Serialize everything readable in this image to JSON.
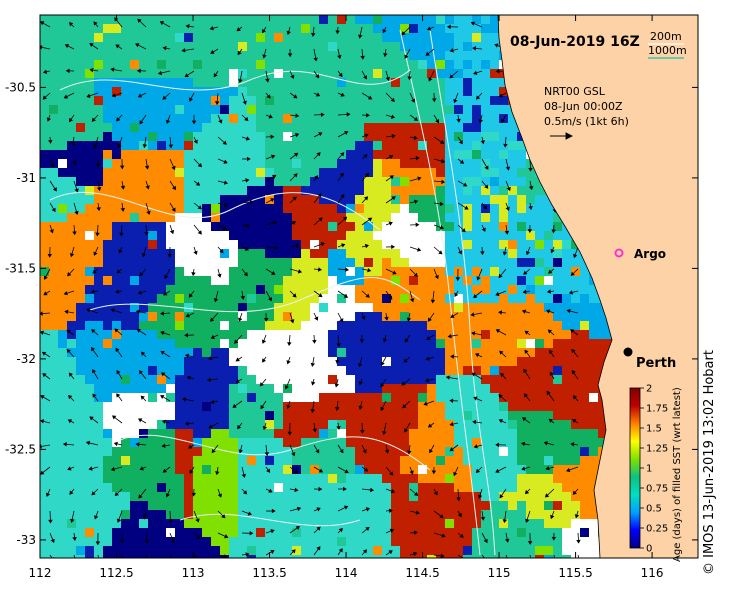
{
  "map": {
    "title": "08-Jun-2019 16Z",
    "depth_contours": {
      "shallow": "200m",
      "deep": "1000m",
      "deep_color": "#3fc3a8"
    },
    "current_source": {
      "product": "NRT00 GSL",
      "time": "08-Jun 00:00Z",
      "scale": "0.5m/s (1kt 6h)"
    },
    "places": [
      {
        "name": "Argo",
        "lon": 115.78,
        "lat": -31.47,
        "marker_color": "#ff33cc"
      },
      {
        "name": "Perth",
        "lon": 115.86,
        "lat": -31.95,
        "marker_color": "#000000"
      }
    ],
    "lon_ticks": [
      112,
      112.5,
      113,
      113.5,
      114,
      114.5,
      115,
      115.5,
      116
    ],
    "lat_ticks": [
      -30.5,
      -31,
      -31.5,
      -32,
      -32.5,
      -33
    ],
    "lon_range": [
      112,
      116.3
    ],
    "lat_range": [
      -33.1,
      -30.1
    ],
    "land_color": "#fcd2a6"
  },
  "colorbar": {
    "label": "Age (days) of filled SST (wrt latest)",
    "min": 0,
    "max": 2,
    "ticks": [
      "0",
      "0.25",
      "0.5",
      "0.75",
      "1",
      "1.25",
      "1.5",
      "1.75",
      "2"
    ],
    "stops": [
      "#000080",
      "#0000ff",
      "#00a0ff",
      "#00e0c0",
      "#10c080",
      "#80e000",
      "#ffff00",
      "#ff8000",
      "#c00000",
      "#800000"
    ]
  },
  "credit": "© IMOS 13-Jun-2019 13:02 Hobart"
}
